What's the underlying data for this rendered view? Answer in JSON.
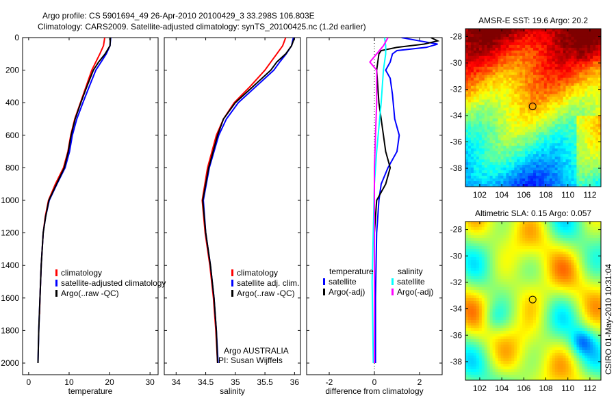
{
  "chart_data": {
    "title_line1": "Argo profile: CS 5901694_49 26-Apr-2010 20100429_3 33.298S 106.803E",
    "title_line2": "Climatology: CARS2009. Satellite-adjusted climatology: synTS_20100425.nc (1.2d earlier)",
    "depth_axis": {
      "ylim": [
        0,
        2000
      ],
      "ticks": [
        "0",
        "200",
        "400",
        "600",
        "800",
        "1000",
        "1200",
        "1400",
        "1600",
        "1800",
        "2000"
      ],
      "reversed": true
    },
    "panels": [
      {
        "type": "line",
        "xlabel": "temperature",
        "xlim": [
          -1.5,
          32
        ],
        "xticks": [
          0,
          10,
          20,
          30
        ],
        "xtick_labels": [
          "0",
          "10",
          "20",
          "30"
        ],
        "legend": [
          "climatology",
          "satellite-adjusted climatology",
          "Argo(..raw -QC)"
        ],
        "series": [
          {
            "name": "climatology",
            "color": "#ff0000",
            "depth": [
              0,
              50,
              100,
              150,
              200,
              300,
              400,
              500,
              600,
              700,
              800,
              900,
              1000,
              1100,
              1200,
              1400,
              1600,
              1700
            ],
            "values": [
              18.8,
              18.5,
              17.6,
              16.6,
              15.6,
              14.2,
              12.8,
              11.4,
              10.4,
              9.7,
              8.6,
              6.6,
              4.9,
              4.1,
              3.6,
              3.1,
              2.8,
              2.7
            ]
          },
          {
            "name": "satellite-adjusted climatology",
            "color": "#0000ff",
            "depth": [
              0,
              50,
              100,
              150,
              200,
              300,
              400,
              500,
              600,
              700,
              800,
              900,
              1000,
              1100,
              1200,
              1400,
              1600,
              1800,
              2000
            ],
            "values": [
              20.3,
              20.1,
              19.2,
              17.9,
              16.6,
              15.0,
              13.4,
              11.9,
              10.8,
              10.1,
              9.0,
              7.0,
              5.1,
              4.2,
              3.6,
              3.1,
              2.8,
              2.5,
              2.3
            ]
          },
          {
            "name": "Argo(..raw -QC)",
            "color": "#000000",
            "depth": [
              0,
              50,
              100,
              150,
              200,
              300,
              400,
              500,
              600,
              700,
              800,
              900,
              1000,
              1100,
              1200,
              1400,
              1600,
              1800,
              2000
            ],
            "values": [
              20.2,
              20.1,
              18.9,
              17.3,
              16.0,
              14.4,
              12.9,
              11.5,
              10.5,
              9.8,
              8.8,
              6.9,
              5.0,
              4.2,
              3.6,
              3.1,
              2.8,
              2.5,
              2.3
            ]
          }
        ]
      },
      {
        "type": "line",
        "xlabel": "salinity",
        "xlim": [
          33.8,
          36.1
        ],
        "xticks": [
          34,
          34.5,
          35,
          35.5,
          36
        ],
        "xtick_labels": [
          "34",
          "34.5",
          "35",
          "35.5",
          "36"
        ],
        "legend": [
          "climatology",
          "satellite adj. clim.",
          "Argo(..raw -QC)"
        ],
        "annotation": [
          "Argo AUSTRALIA",
          "PI: Susan Wijffels"
        ],
        "series": [
          {
            "name": "climatology",
            "color": "#ff0000",
            "depth": [
              0,
              50,
              100,
              150,
              200,
              300,
              400,
              500,
              600,
              800,
              1000,
              1200,
              1400,
              1600,
              1800,
              2000
            ],
            "values": [
              35.85,
              35.8,
              35.7,
              35.6,
              35.5,
              35.25,
              34.98,
              34.8,
              34.68,
              34.53,
              34.44,
              34.49,
              34.57,
              34.63,
              34.67,
              34.7
            ]
          },
          {
            "name": "satellite adj. clim.",
            "color": "#0000ff",
            "depth": [
              0,
              50,
              100,
              150,
              200,
              300,
              400,
              500,
              600,
              800,
              1000,
              1200,
              1400,
              1600,
              1800,
              2000
            ],
            "values": [
              35.98,
              35.95,
              35.86,
              35.75,
              35.65,
              35.35,
              35.05,
              34.85,
              34.72,
              34.56,
              34.46,
              34.5,
              34.58,
              34.64,
              34.68,
              34.71
            ]
          },
          {
            "name": "Argo(..raw -QC)",
            "color": "#000000",
            "depth": [
              0,
              50,
              100,
              150,
              200,
              300,
              400,
              500,
              600,
              800,
              1000,
              1200,
              1400,
              1600,
              1800,
              2000
            ],
            "values": [
              36.0,
              35.95,
              35.85,
              35.7,
              35.6,
              35.3,
              35.0,
              34.8,
              34.7,
              34.55,
              34.45,
              34.5,
              34.58,
              34.64,
              34.68,
              34.7
            ]
          }
        ]
      },
      {
        "type": "line",
        "xlabel": "difference from climatology",
        "xlim": [
          -3,
          3
        ],
        "xticks": [
          -2,
          0,
          2
        ],
        "xtick_labels": [
          "-2",
          "0",
          "2"
        ],
        "legend_temperature": [
          "temperature",
          "satellite",
          "Argo(-adj)"
        ],
        "legend_salinity": [
          "salinity",
          "satellite",
          "Argo(-adj)"
        ],
        "series": [
          {
            "name": "temperature satellite",
            "color": "#0000ff",
            "depth": [
              0,
              20,
              40,
              60,
              80,
              100,
              150,
              200,
              250,
              350,
              500,
              600,
              700,
              800,
              900,
              1000,
              1100,
              1200,
              1600,
              2000
            ],
            "values": [
              1.2,
              2.0,
              2.8,
              2.3,
              1.0,
              0.8,
              0.7,
              0.5,
              0.7,
              0.8,
              0.9,
              1.1,
              1.0,
              0.6,
              0.3,
              0.2,
              0.15,
              0.1,
              0.05,
              0.05
            ]
          },
          {
            "name": "temperature Argo(-adj)",
            "color": "#000000",
            "depth": [
              0,
              20,
              40,
              60,
              80,
              100,
              200,
              400,
              600,
              700,
              800,
              900,
              1000,
              1200,
              2000
            ],
            "values": [
              2.5,
              2.8,
              2.2,
              1.0,
              0.3,
              0.2,
              0.1,
              0.2,
              0.4,
              0.5,
              0.7,
              0.5,
              0.1,
              0.0,
              0.0
            ]
          },
          {
            "name": "salinity satellite",
            "color": "#00ffff",
            "depth": [
              0,
              50,
              100,
              200,
              400,
              700,
              900,
              1500,
              2000
            ],
            "values": [
              0.45,
              0.5,
              0.5,
              0.4,
              0.3,
              0.1,
              0.0,
              -0.1,
              -0.05
            ]
          },
          {
            "name": "salinity Argo(-adj)",
            "color": "#ff00ff",
            "depth": [
              0,
              50,
              100,
              150,
              200,
              400,
              800,
              2000
            ],
            "values": [
              0.6,
              0.4,
              0.1,
              -0.2,
              0.1,
              0.1,
              0.0,
              0.0
            ]
          }
        ]
      }
    ],
    "maps": [
      {
        "title": "AMSR-E SST: 19.6 Argo: 20.2",
        "type": "heatmap",
        "field": "sst",
        "lon_ticks": [
          "102",
          "104",
          "106",
          "108",
          "110",
          "112"
        ],
        "lat_ticks": [
          "-28",
          "-30",
          "-32",
          "-34",
          "-36",
          "-38"
        ],
        "xlim": [
          100.7,
          113
        ],
        "ylim": [
          -39.4,
          -27.4
        ],
        "marker": {
          "lon": 106.8,
          "lat": -33.3
        }
      },
      {
        "title": "Altimetric SLA: 0.15 Argo: 0.057",
        "type": "heatmap",
        "field": "sla",
        "lon_ticks": [
          "102",
          "104",
          "106",
          "108",
          "110",
          "112"
        ],
        "lat_ticks": [
          "-28",
          "-30",
          "-32",
          "-34",
          "-36",
          "-38"
        ],
        "xlim": [
          100.7,
          113
        ],
        "ylim": [
          -39.4,
          -27.4
        ],
        "marker": {
          "lon": 106.8,
          "lat": -33.3
        }
      }
    ],
    "footer": "CSIRO 01-May-2010 10:31:04"
  }
}
